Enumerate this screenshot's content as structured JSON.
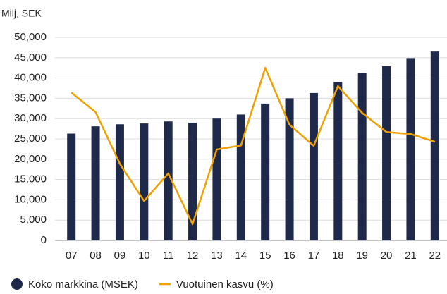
{
  "chart_data": {
    "type": "bar",
    "y_label": "Milj, SEK",
    "categories": [
      "07",
      "08",
      "09",
      "10",
      "11",
      "12",
      "13",
      "14",
      "15",
      "16",
      "17",
      "18",
      "19",
      "20",
      "21",
      "22"
    ],
    "series": [
      {
        "name": "Koko markkina (MSEK)",
        "type": "bar",
        "color": "#1f2a4a",
        "values": [
          26300,
          28100,
          28600,
          28800,
          29300,
          29000,
          30000,
          31000,
          33700,
          35000,
          36300,
          39000,
          41200,
          42900,
          44900,
          46500
        ]
      },
      {
        "name": "Vuotuinen kasvu (%)",
        "type": "line",
        "color": "#f0a000",
        "values": [
          36400,
          31600,
          18900,
          9700,
          16500,
          4000,
          22400,
          23400,
          42500,
          28500,
          23300,
          38000,
          31400,
          26700,
          26200,
          24300
        ]
      }
    ],
    "ylim": [
      0,
      50000
    ],
    "yticks": [
      0,
      {
        "value": 5000,
        "label": "5,000"
      },
      {
        "value": 10000,
        "label": "10,000"
      },
      {
        "value": 15000,
        "label": "15,000"
      },
      {
        "value": 20000,
        "label": "20,000"
      },
      {
        "value": 25000,
        "label": "25,000"
      },
      {
        "value": 30000,
        "label": "30,000"
      },
      {
        "value": 35000,
        "label": "35,000"
      },
      {
        "value": 40000,
        "label": "40,000"
      },
      {
        "value": 45000,
        "label": "45,000"
      },
      {
        "value": 50000,
        "label": "50,000"
      }
    ],
    "grid": true
  }
}
